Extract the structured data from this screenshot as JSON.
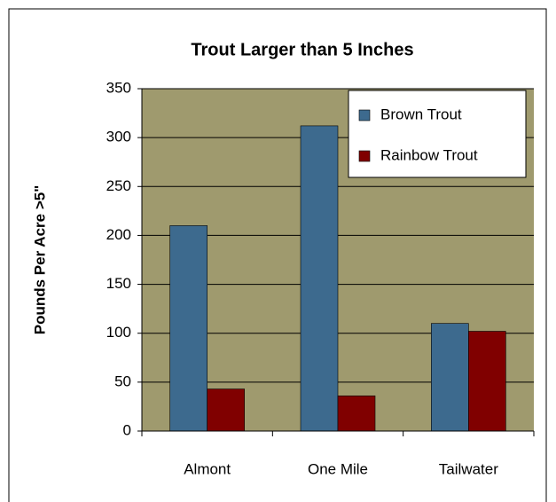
{
  "chart_data": {
    "type": "bar",
    "title": "Trout Larger than 5 Inches",
    "y_label": "Pounds Per Acre >5\"",
    "categories": [
      "Almont",
      "One Mile",
      "Tailwater"
    ],
    "series": [
      {
        "name": "Brown Trout",
        "color": "#3d6a8e",
        "values": [
          210,
          312,
          110
        ]
      },
      {
        "name": "Rainbow Trout",
        "color": "#800000",
        "values": [
          43,
          36,
          102
        ]
      }
    ],
    "ylim": [
      0,
      350
    ],
    "yticks": [
      0,
      50,
      100,
      150,
      200,
      250,
      300,
      350
    ],
    "grid": true,
    "plot_background": "#9f9a6e",
    "legend": "top-right"
  }
}
